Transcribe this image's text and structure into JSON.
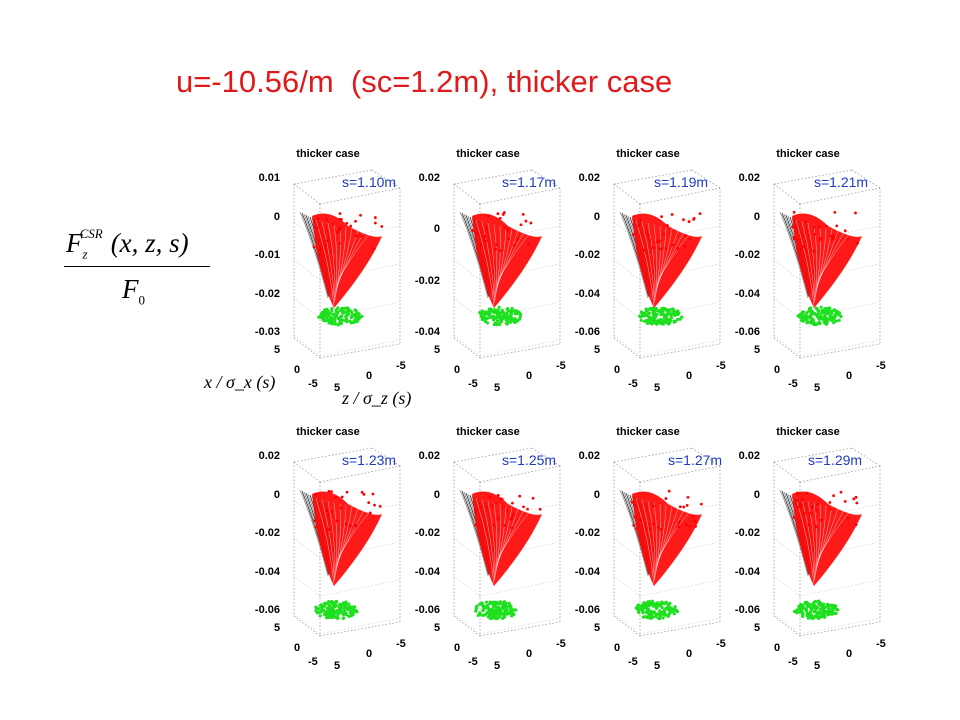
{
  "slide": {
    "title": "u=-10.56/m  (sc=1.2m), thicker case"
  },
  "formula": {
    "F": "F",
    "sub_z": "z",
    "sup_csr": "CSR",
    "args": "(x, z, s)",
    "denominator": "F",
    "den_sub": "0"
  },
  "axis_labels": {
    "x_over_sigma": "x / σ_x (s)",
    "z_over_sigma": "z / σ_z (s)"
  },
  "colors": {
    "title": "#e01a1a",
    "s_label": "#1f3bc4",
    "surface_red": "#ff0000",
    "surface_gray": "#555555",
    "particles_green": "#1ee01e"
  },
  "panels": [
    {
      "title": "thicker case",
      "s_label": "s=1.10m",
      "yticks": [
        "0.01",
        "0",
        "-0.01",
        "-0.02",
        "-0.03"
      ],
      "xticks": [
        "5",
        "0",
        "-5"
      ],
      "zticks": [
        "5",
        "0",
        "-5"
      ]
    },
    {
      "title": "thicker case",
      "s_label": "s=1.17m",
      "yticks": [
        "0.02",
        "0",
        "-0.02",
        "-0.04"
      ],
      "xticks": [
        "5",
        "0",
        "-5"
      ],
      "zticks": [
        "5",
        "0",
        "-5"
      ]
    },
    {
      "title": "thicker case",
      "s_label": "s=1.19m",
      "yticks": [
        "0.02",
        "0",
        "-0.02",
        "-0.04",
        "-0.06"
      ],
      "xticks": [
        "5",
        "0",
        "-5"
      ],
      "zticks": [
        "5",
        "0",
        "-5"
      ]
    },
    {
      "title": "thicker case",
      "s_label": "s=1.21m",
      "yticks": [
        "0.02",
        "0",
        "-0.02",
        "-0.04",
        "-0.06"
      ],
      "xticks": [
        "5",
        "0",
        "-5"
      ],
      "zticks": [
        "5",
        "0",
        "-5"
      ]
    },
    {
      "title": "thicker case",
      "s_label": "s=1.23m",
      "yticks": [
        "0.02",
        "0",
        "-0.02",
        "-0.04",
        "-0.06"
      ],
      "xticks": [
        "5",
        "0",
        "-5"
      ],
      "zticks": [
        "5",
        "0",
        "-5"
      ]
    },
    {
      "title": "thicker case",
      "s_label": "s=1.25m",
      "yticks": [
        "0.02",
        "0",
        "-0.02",
        "-0.04",
        "-0.06"
      ],
      "xticks": [
        "5",
        "0",
        "-5"
      ],
      "zticks": [
        "5",
        "0",
        "-5"
      ]
    },
    {
      "title": "thicker case",
      "s_label": "s=1.27m",
      "yticks": [
        "0.02",
        "0",
        "-0.02",
        "-0.04",
        "-0.06"
      ],
      "xticks": [
        "5",
        "0",
        "-5"
      ],
      "zticks": [
        "5",
        "0",
        "-5"
      ]
    },
    {
      "title": "thicker case",
      "s_label": "s=1.29m",
      "yticks": [
        "0.02",
        "0",
        "-0.02",
        "-0.04",
        "-0.06"
      ],
      "xticks": [
        "5",
        "0",
        "-5"
      ],
      "zticks": [
        "5",
        "0",
        "-5"
      ]
    }
  ]
}
